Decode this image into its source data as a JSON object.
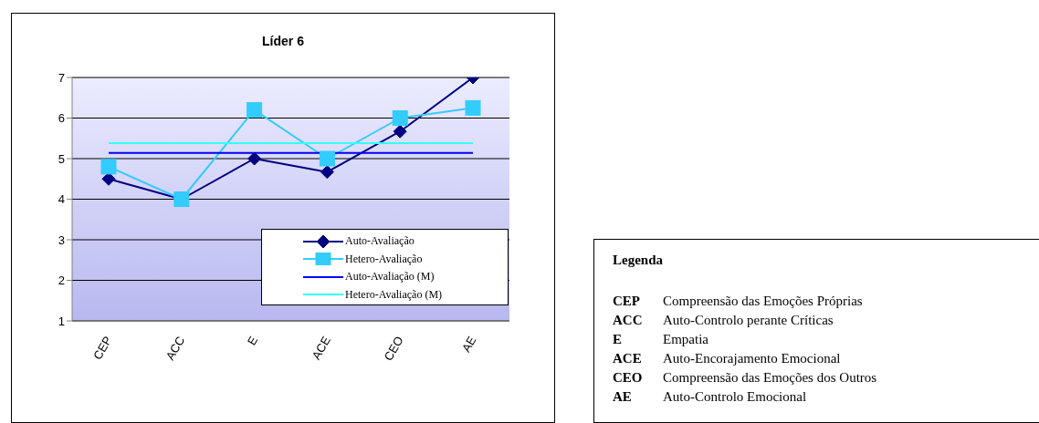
{
  "chart_data": [
    {
      "type": "line",
      "title": "Líder 6",
      "categories": [
        "CEP",
        "ACC",
        "E",
        "ACE",
        "CEO",
        "AE"
      ],
      "series": [
        {
          "name": "Auto-Avaliação",
          "color": "#000080",
          "marker": "diamond",
          "values": [
            4.5,
            4.0,
            5.0,
            4.67,
            5.67,
            7.0
          ]
        },
        {
          "name": "Hetero-Avaliação",
          "color": "#33ccff",
          "marker": "square",
          "values": [
            4.8,
            4.0,
            6.2,
            5.0,
            6.0,
            6.25
          ]
        },
        {
          "name": "Auto-Avaliação (M)",
          "color": "#0000ff",
          "marker": "none",
          "values": [
            5.14,
            5.14,
            5.14,
            5.14,
            5.14,
            5.14
          ]
        },
        {
          "name": "Hetero-Avaliação (M)",
          "color": "#33ffff",
          "marker": "none",
          "values": [
            5.38,
            5.38,
            5.38,
            5.38,
            5.38,
            5.38
          ]
        }
      ],
      "ylim": [
        1,
        7
      ],
      "yticks": [
        1,
        2,
        3,
        4,
        5,
        6,
        7
      ],
      "grid": "y",
      "legend": "bottom right"
    },
    {
      "type": "other",
      "title": "Legenda",
      "annotations": [
        "CEP Compreensão das Emoções Próprias",
        "ACC Auto-Controlo perante Críticas",
        "E Empatia",
        "ACE Auto-Encorajamento Emocional",
        "CEO Compreensão das Emoções dos Outros",
        "AE Auto-Controlo Emocional"
      ]
    }
  ]
}
